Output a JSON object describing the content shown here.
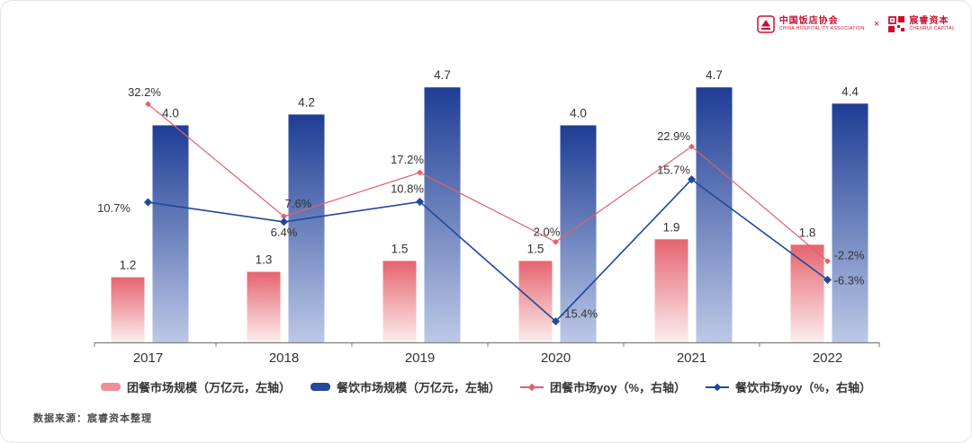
{
  "header": {
    "logo_left": {
      "name": "中国饭店协会",
      "subtitle": "CHINA HOSPITALITY ASSOCIATION"
    },
    "separator": "×",
    "logo_right": {
      "name": "宸睿资本",
      "subtitle": "CHENRUI CAPITAL"
    },
    "brand_color": "#c8102e"
  },
  "footer": {
    "source_note": "数据来源：宸睿资本整理"
  },
  "chart_data": {
    "type": "bar",
    "categories": [
      "2017",
      "2018",
      "2019",
      "2020",
      "2021",
      "2022"
    ],
    "series": [
      {
        "name": "团餐市场规模（万亿元，左轴）",
        "type": "bar",
        "axis": "left",
        "color_top": "#e5646f",
        "color_bottom": "#fceeee",
        "legend_color": "#ee8f96",
        "values": [
          1.2,
          1.3,
          1.5,
          1.5,
          1.9,
          1.8
        ]
      },
      {
        "name": "餐饮市场规模（万亿元，左轴）",
        "type": "bar",
        "axis": "left",
        "color_top": "#1e3d95",
        "color_bottom": "#bcc8e6",
        "legend_color": "#27489b",
        "values": [
          4.0,
          4.2,
          4.7,
          4.0,
          4.7,
          4.4
        ]
      },
      {
        "name": "团餐市场yoy（%，右轴）",
        "type": "line",
        "axis": "right",
        "color": "#e0606d",
        "values": [
          32.2,
          7.6,
          17.2,
          2.0,
          22.9,
          -2.2
        ]
      },
      {
        "name": "餐饮市场yoy（%，右轴）",
        "type": "line",
        "axis": "right",
        "color": "#1f479c",
        "values": [
          10.7,
          6.4,
          10.8,
          -15.4,
          15.7,
          -6.3
        ]
      }
    ],
    "left_ylim": [
      0,
      5.3
    ],
    "right_ylim": [
      -20,
      43
    ],
    "grid": false,
    "legend_position": "bottom",
    "bar_label_format": "0.1f",
    "line_label_format": "0.1f%"
  }
}
